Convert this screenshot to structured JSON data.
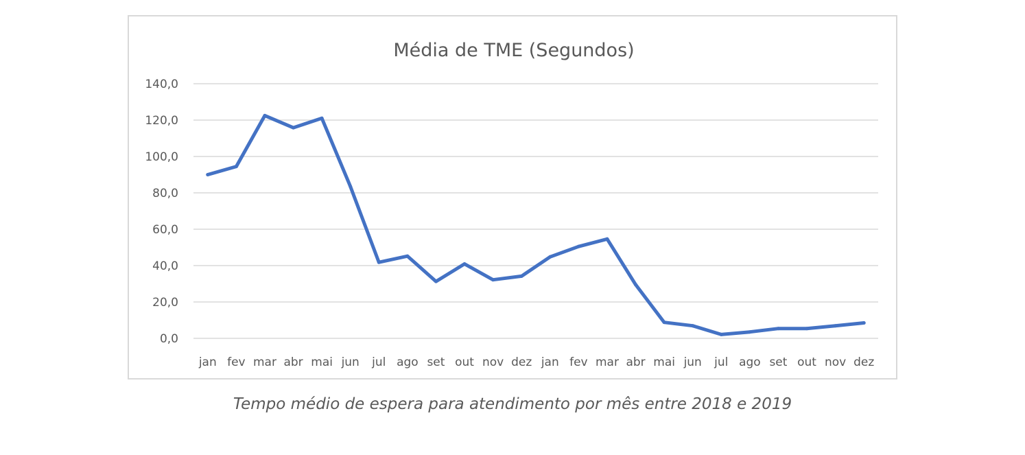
{
  "chart_data": {
    "type": "line",
    "title": "Média de TME (Segundos)",
    "xlabel": "",
    "ylabel": "",
    "categories": [
      "jan",
      "fev",
      "mar",
      "abr",
      "mai",
      "jun",
      "jul",
      "ago",
      "set",
      "out",
      "nov",
      "dez",
      "jan",
      "fev",
      "mar",
      "abr",
      "mai",
      "jun",
      "jul",
      "ago",
      "set",
      "out",
      "nov",
      "dez"
    ],
    "series": [
      {
        "values": [
          90.0,
          94.5,
          122.5,
          115.8,
          121.0,
          83.5,
          41.8,
          45.2,
          31.3,
          40.9,
          32.2,
          34.2,
          44.8,
          50.5,
          54.6,
          29.5,
          8.8,
          6.9,
          2.1,
          3.5,
          5.4,
          5.4,
          6.9,
          8.5
        ],
        "color": "#4472c4"
      }
    ],
    "ylim": [
      0,
      140
    ],
    "ytick_labels": [
      "0,0",
      "20,0",
      "40,0",
      "60,0",
      "80,0",
      "100,0",
      "120,0",
      "140,0"
    ],
    "grid": true,
    "legend": "none"
  },
  "caption": "Tempo médio de espera para atendimento por mês entre 2018 e 2019"
}
